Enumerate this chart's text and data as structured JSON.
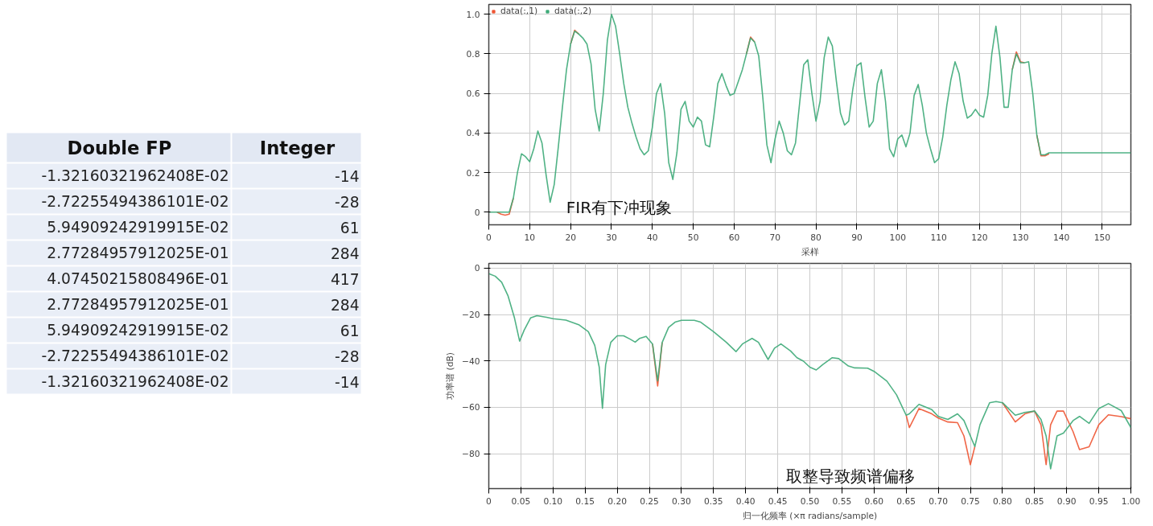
{
  "chart_data": [
    {
      "type": "other",
      "categories": [
        "Double FP",
        "Integer"
      ],
      "cell_labels": [
        [
          "-1.32160321962408E-02",
          "-14"
        ],
        [
          "-2.72255494386101E-02",
          "-28"
        ],
        [
          "5.94909242919915E-02",
          "61"
        ],
        [
          "2.77284957912025E-01",
          "284"
        ],
        [
          "4.07450215808496E-01",
          "417"
        ],
        [
          "2.77284957912025E-01",
          "284"
        ],
        [
          "5.94909242919915E-02",
          "61"
        ],
        [
          "-2.72255494386101E-02",
          "-28"
        ],
        [
          "-1.32160321962408E-02",
          "-14"
        ]
      ]
    },
    {
      "type": "line",
      "xlabel": "采样",
      "legend": "top left",
      "grid": true,
      "xlim": [
        0,
        157
      ],
      "ylim": [
        -0.064,
        1.05
      ],
      "xticks": [
        0,
        10,
        20,
        30,
        40,
        50,
        60,
        70,
        80,
        90,
        100,
        110,
        120,
        130,
        140,
        150
      ],
      "yticks": [
        0,
        0.2,
        0.4,
        0.6,
        0.8,
        {
          "value": 1,
          "label": "1.0"
        }
      ],
      "annotations": [
        "FIR有下冲现象"
      ],
      "series": [
        {
          "name": "data(:,1)",
          "color": "#ee5533",
          "x": [
            2,
            3,
            4,
            5,
            6,
            7,
            20,
            21,
            22,
            23,
            63,
            64,
            65,
            66,
            128,
            129,
            130,
            131,
            132,
            134,
            135,
            136,
            137
          ],
          "values": [
            0,
            -0.01,
            -0.015,
            -0.01,
            0.07,
            null,
            0.85,
            0.92,
            0.9,
            null,
            0.8,
            0.885,
            0.86,
            null,
            0.72,
            0.81,
            0.76,
            0.755,
            null,
            0.39,
            0.285,
            0.285,
            0.295
          ]
        },
        {
          "name": "data(:,2)",
          "color": "#3daa78",
          "x": [
            0,
            1,
            2,
            3,
            4,
            5,
            6,
            7,
            8,
            9,
            10,
            11,
            12,
            13,
            14,
            15,
            16,
            17,
            18,
            19,
            20,
            21,
            22,
            23,
            24,
            25,
            26,
            27,
            28,
            29,
            30,
            31,
            32,
            33,
            34,
            35,
            36,
            37,
            38,
            39,
            40,
            41,
            42,
            43,
            44,
            45,
            46,
            47,
            48,
            49,
            50,
            51,
            52,
            53,
            54,
            55,
            56,
            57,
            58,
            59,
            60,
            61,
            62,
            63,
            64,
            65,
            66,
            67,
            68,
            69,
            70,
            71,
            72,
            73,
            74,
            75,
            76,
            77,
            78,
            79,
            80,
            81,
            82,
            83,
            84,
            85,
            86,
            87,
            88,
            89,
            90,
            91,
            92,
            93,
            94,
            95,
            96,
            97,
            98,
            99,
            100,
            101,
            102,
            103,
            104,
            105,
            106,
            107,
            108,
            109,
            110,
            111,
            112,
            113,
            114,
            115,
            116,
            117,
            118,
            119,
            120,
            121,
            122,
            123,
            124,
            125,
            126,
            127,
            128,
            129,
            130,
            131,
            132,
            133,
            134,
            135,
            136,
            137,
            157
          ],
          "values": [
            0,
            0,
            0,
            0,
            0,
            0,
            0.07,
            0.2,
            0.295,
            0.28,
            0.255,
            0.32,
            0.41,
            0.35,
            0.19,
            0.05,
            0.14,
            0.33,
            0.53,
            0.72,
            0.85,
            0.915,
            0.9,
            0.88,
            0.85,
            0.75,
            0.52,
            0.41,
            0.6,
            0.87,
            1.0,
            0.94,
            0.8,
            0.65,
            0.53,
            0.45,
            0.38,
            0.32,
            0.29,
            0.31,
            0.43,
            0.6,
            0.65,
            0.5,
            0.25,
            0.165,
            0.3,
            0.52,
            0.56,
            0.46,
            0.43,
            0.48,
            0.46,
            0.34,
            0.33,
            0.48,
            0.65,
            0.7,
            0.64,
            0.59,
            0.6,
            0.66,
            0.72,
            0.8,
            0.88,
            0.86,
            0.79,
            0.58,
            0.34,
            0.25,
            0.37,
            0.46,
            0.4,
            0.31,
            0.29,
            0.35,
            0.55,
            0.745,
            0.77,
            0.6,
            0.46,
            0.56,
            0.78,
            0.885,
            0.84,
            0.66,
            0.5,
            0.44,
            0.46,
            0.62,
            0.74,
            0.755,
            0.58,
            0.43,
            0.46,
            0.65,
            0.72,
            0.56,
            0.32,
            0.28,
            0.37,
            0.39,
            0.33,
            0.4,
            0.59,
            0.645,
            0.54,
            0.4,
            0.32,
            0.25,
            0.27,
            0.38,
            0.54,
            0.67,
            0.76,
            0.7,
            0.56,
            0.475,
            0.49,
            0.52,
            0.49,
            0.48,
            0.59,
            0.8,
            0.94,
            0.78,
            0.53,
            0.53,
            0.72,
            0.8,
            0.755,
            0.755,
            0.76,
            0.6,
            0.39,
            0.29,
            0.29,
            0.3,
            0.3
          ]
        }
      ]
    },
    {
      "type": "line",
      "xlabel": "归一化频率 (×π radians/sample)",
      "ylabel": "功率谱 (dB)",
      "grid": true,
      "xlim": [
        0,
        1
      ],
      "ylim": [
        -95,
        2
      ],
      "xticks": [
        0,
        0.05,
        {
          "value": 0.1,
          "label": "0.10"
        },
        0.15,
        {
          "value": 0.2,
          "label": "0.20"
        },
        0.25,
        {
          "value": 0.3,
          "label": "0.30"
        },
        0.35,
        {
          "value": 0.4,
          "label": "0.40"
        },
        0.45,
        {
          "value": 0.5,
          "label": "0.50"
        },
        0.55,
        {
          "value": 0.6,
          "label": "0.60"
        },
        0.65,
        {
          "value": 0.7,
          "label": "0.70"
        },
        0.75,
        {
          "value": 0.8,
          "label": "0.80"
        },
        0.85,
        {
          "value": 0.9,
          "label": "0.90"
        },
        0.95,
        {
          "value": 1,
          "label": "1.00"
        }
      ],
      "yticks": [
        -80,
        -60,
        -40,
        -20,
        0
      ],
      "annotations": [
        "取整导致频谱偏移"
      ],
      "series": [
        {
          "color": "#ee5533",
          "x": [
            0.255,
            0.263,
            0.27,
            0.28,
            0.65,
            0.655,
            0.67,
            0.69,
            0.7,
            0.715,
            0.73,
            0.74,
            0.75,
            0.757,
            0.76,
            0.8,
            0.82,
            0.835,
            0.85,
            0.86,
            0.868,
            0.875,
            0.885,
            0.895,
            0.91,
            0.92,
            0.935,
            0.95,
            0.965,
            0.985,
            1.0
          ],
          "values": [
            -32.7,
            -50.8,
            -32.1,
            null,
            -63.4,
            -68.7,
            -60.5,
            -62.8,
            -64.6,
            -66.3,
            -66.6,
            -72.3,
            -84.7,
            -76.9,
            null,
            -58,
            -66.3,
            -62.8,
            -61.6,
            -67.5,
            -84.7,
            -67.5,
            -61.6,
            -61.6,
            -70.5,
            -78.2,
            -77,
            -67.5,
            -63.2,
            -64,
            -64.9
          ]
        },
        {
          "color": "#3daa78",
          "x": [
            0,
            0.01,
            0.02,
            0.03,
            0.04,
            0.048,
            0.055,
            0.065,
            0.075,
            0.09,
            0.1,
            0.12,
            0.14,
            0.155,
            0.165,
            0.172,
            0.177,
            0.182,
            0.19,
            0.2,
            0.21,
            0.22,
            0.228,
            0.235,
            0.245,
            0.255,
            0.263,
            0.27,
            0.28,
            0.29,
            0.3,
            0.32,
            0.33,
            0.35,
            0.37,
            0.385,
            0.395,
            0.41,
            0.42,
            0.435,
            0.445,
            0.455,
            0.47,
            0.48,
            0.49,
            0.5,
            0.51,
            0.52,
            0.535,
            0.545,
            0.56,
            0.57,
            0.59,
            0.6,
            0.62,
            0.635,
            0.65,
            0.655,
            0.67,
            0.69,
            0.7,
            0.715,
            0.73,
            0.74,
            0.75,
            0.757,
            0.765,
            0.78,
            0.79,
            0.8,
            0.82,
            0.835,
            0.85,
            0.86,
            0.868,
            0.875,
            0.885,
            0.895,
            0.91,
            0.92,
            0.935,
            0.95,
            0.965,
            0.985,
            1.0
          ],
          "values": [
            -2.4,
            -3.5,
            -6.1,
            -12,
            -21.5,
            -31.5,
            -26.8,
            -21.5,
            -20.5,
            -21.2,
            -21.8,
            -22.4,
            -24.4,
            -27.4,
            -33.3,
            -42.7,
            -60.4,
            -41.6,
            -32,
            -29.2,
            -29.2,
            -30.6,
            -31.9,
            -30.3,
            -29.4,
            -32.7,
            -48.6,
            -32.1,
            -25.6,
            -23.3,
            -22.5,
            -22.5,
            -23.3,
            -27.4,
            -32,
            -36,
            -32.7,
            -30.3,
            -32,
            -39.4,
            -34.5,
            -32.7,
            -35.7,
            -38.6,
            -40.1,
            -42.7,
            -43.9,
            -41.6,
            -38.6,
            -39,
            -42.2,
            -43,
            -43.1,
            -44.5,
            -48.7,
            -54.6,
            -63.4,
            -62.8,
            -58.7,
            -61,
            -63.9,
            -65.2,
            -62.8,
            -65.7,
            -72.3,
            -76.9,
            -67.5,
            -58,
            -57.5,
            -58,
            -63.4,
            -62.2,
            -61.6,
            -65.2,
            -72.3,
            -86.5,
            -72.3,
            -71.1,
            -65.7,
            -63.9,
            -66.9,
            -60.5,
            -58.4,
            -61.4,
            -68.7
          ]
        }
      ]
    }
  ]
}
